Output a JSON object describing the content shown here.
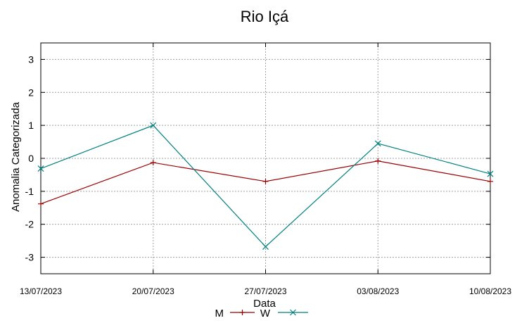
{
  "chart_data": {
    "type": "line",
    "title": "Rio Içá",
    "xlabel": "Data",
    "ylabel": "Anomalia Categorizada",
    "categories": [
      "13/07/2023",
      "20/07/2023",
      "27/07/2023",
      "03/08/2023",
      "10/08/2023"
    ],
    "ylim": [
      -3.5,
      3.5
    ],
    "yticks": [
      3,
      2,
      1,
      0,
      -1,
      -2,
      -3
    ],
    "grid": true,
    "legend_position": "bottom-center",
    "series": [
      {
        "name": "M",
        "color": "#9b0000",
        "marker": "plus",
        "values": [
          -1.38,
          -0.13,
          -0.7,
          -0.08,
          -0.7
        ]
      },
      {
        "name": "W",
        "color": "#00807f",
        "marker": "x",
        "values": [
          -0.31,
          1.0,
          -2.68,
          0.45,
          -0.47
        ]
      }
    ]
  }
}
